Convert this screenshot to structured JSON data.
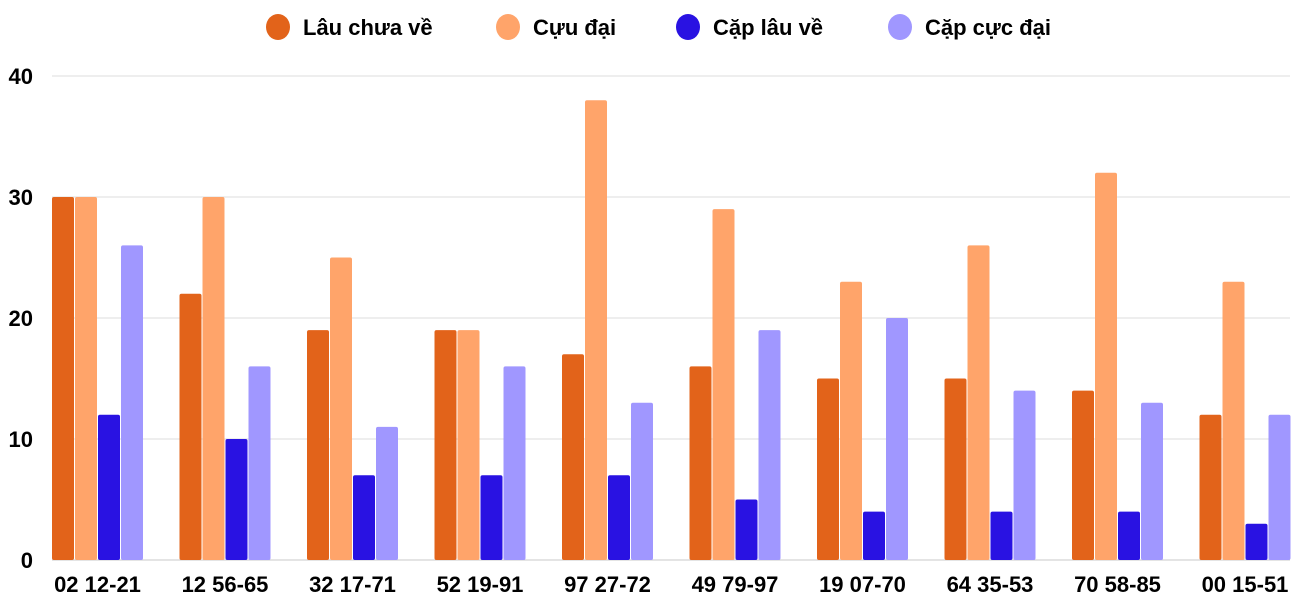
{
  "chart_data": {
    "type": "bar",
    "title": "",
    "xlabel": "",
    "ylabel": "",
    "ylim": [
      0,
      40
    ],
    "yticks": [
      "0",
      "10",
      "20",
      "30",
      "40"
    ],
    "grid": true,
    "legend_placement": "top",
    "categories": [
      "02 12-21",
      "12 56-65",
      "32 17-71",
      "52 19-91",
      "97 27-72",
      "49 79-97",
      "19 07-70",
      "64 35-53",
      "70 58-85",
      "00 15-51"
    ],
    "series": [
      {
        "name": "Lâu chưa về",
        "color": "#E2631A",
        "values": [
          30,
          22,
          19,
          19,
          17,
          16,
          15,
          15,
          14,
          12
        ]
      },
      {
        "name": "Cựu đại",
        "color": "#FFA46A",
        "values": [
          30,
          30,
          25,
          19,
          38,
          29,
          23,
          26,
          32,
          23
        ]
      },
      {
        "name": "Cặp lâu về",
        "color": "#2912E2",
        "values": [
          12,
          10,
          7,
          7,
          7,
          5,
          4,
          4,
          4,
          3
        ]
      },
      {
        "name": "Cặp cực đại",
        "color": "#A097FF",
        "values": [
          26,
          16,
          11,
          16,
          13,
          19,
          20,
          14,
          13,
          12
        ]
      }
    ]
  }
}
